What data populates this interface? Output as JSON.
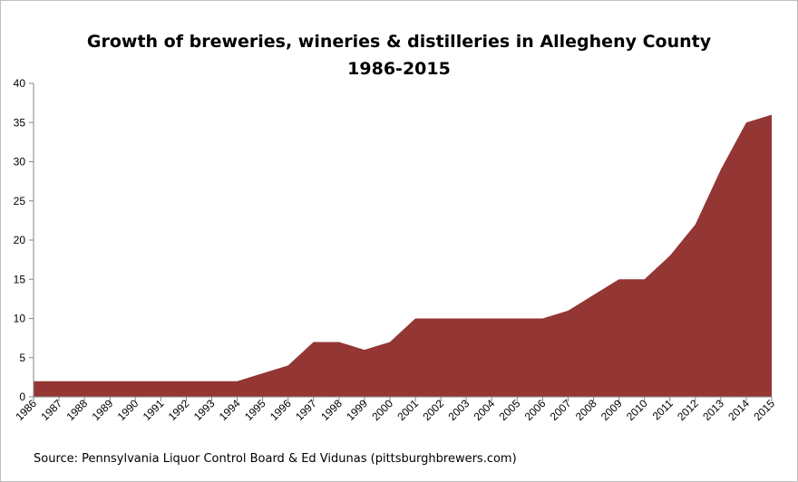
{
  "chart_data": {
    "type": "area",
    "title": "Growth of breweries, wineries & distilleries in Allegheny County",
    "subtitle": "1986-2015",
    "source": "Source:  Pennsylvania Liquor Control Board & Ed Vidunas (pittsburghbrewers.com)",
    "xlabel": "",
    "ylabel": "",
    "ylim": [
      0,
      40
    ],
    "yticks": [
      0,
      5,
      10,
      15,
      20,
      25,
      30,
      35,
      40
    ],
    "grid": false,
    "color": "#943634",
    "categories": [
      "1986",
      "1987",
      "1988",
      "1989",
      "1990",
      "1991",
      "1992",
      "1993",
      "1994",
      "1995",
      "1996",
      "1997",
      "1998",
      "1999",
      "2000",
      "2001",
      "2002",
      "2003",
      "2004",
      "2005",
      "2006",
      "2007",
      "2008",
      "2009",
      "2010",
      "2011",
      "2012",
      "2013",
      "2014",
      "2015"
    ],
    "values": [
      2,
      2,
      2,
      2,
      2,
      2,
      2,
      2,
      2,
      3,
      4,
      7,
      7,
      6,
      7,
      10,
      10,
      10,
      10,
      10,
      10,
      11,
      13,
      15,
      15,
      18,
      22,
      29,
      35,
      36
    ]
  }
}
